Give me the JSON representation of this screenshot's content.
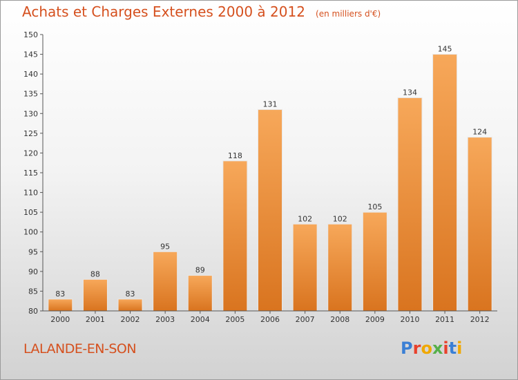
{
  "title": "Achats et Charges Externes 2000 à 2012",
  "unit": "(en milliers d'€)",
  "city": "LALANDE-EN-SON",
  "brand": "Proxiti",
  "colors": {
    "title": "#d5501e",
    "bar_light": "#f7a85a",
    "bar_dark": "#d9741f",
    "logo": [
      "#3a7fd5",
      "#e8412c",
      "#f0a800",
      "#56b04a",
      "#e8412c",
      "#3a7fd5",
      "#f0a800"
    ]
  },
  "chart_data": {
    "type": "bar",
    "categories": [
      "2000",
      "2001",
      "2002",
      "2003",
      "2004",
      "2005",
      "2006",
      "2007",
      "2008",
      "2009",
      "2010",
      "2011",
      "2012"
    ],
    "values": [
      83,
      88,
      83,
      95,
      89,
      118,
      131,
      102,
      102,
      105,
      134,
      145,
      124
    ],
    "ylim": [
      80,
      150
    ],
    "yticks": [
      80,
      85,
      90,
      95,
      100,
      105,
      110,
      115,
      120,
      125,
      130,
      135,
      140,
      145,
      150
    ],
    "grid": false
  }
}
